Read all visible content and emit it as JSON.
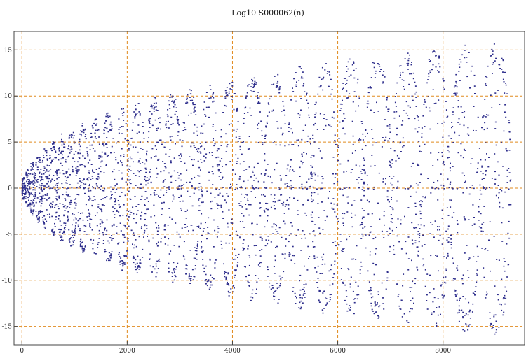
{
  "chart_data": {
    "type": "scatter",
    "title": "Log10 S000062(n)",
    "xlabel": "",
    "ylabel": "",
    "xlim": [
      -150,
      9550
    ],
    "ylim": [
      -17,
      17
    ],
    "x_ticks": [
      0,
      2000,
      4000,
      6000,
      8000
    ],
    "x_tick_labels": [
      "0",
      "2000",
      "4000",
      "6000",
      "8000"
    ],
    "y_ticks": [
      -15,
      -10,
      -5,
      0,
      5,
      10,
      15
    ],
    "y_tick_labels": [
      "-15",
      "-10",
      "-5",
      "0",
      "5",
      "10",
      "15"
    ],
    "grid": true,
    "grid_color": "#e08a1e",
    "point_color": "#2e2e8c",
    "series": [
      {
        "lobes": [
          {
            "x": 30,
            "amp": 1.2
          },
          {
            "x": 105,
            "amp": 2.1
          },
          {
            "x": 195,
            "amp": 3.0
          },
          {
            "x": 310,
            "amp": 3.8
          },
          {
            "x": 440,
            "amp": 4.5
          },
          {
            "x": 590,
            "amp": 5.2
          },
          {
            "x": 760,
            "amp": 5.9
          },
          {
            "x": 950,
            "amp": 6.5
          },
          {
            "x": 1160,
            "amp": 7.1
          },
          {
            "x": 1390,
            "amp": 7.7
          },
          {
            "x": 1640,
            "amp": 8.3
          },
          {
            "x": 1910,
            "amp": 8.9
          },
          {
            "x": 2200,
            "amp": 9.4
          },
          {
            "x": 2520,
            "amp": 9.9
          },
          {
            "x": 2860,
            "amp": 10.4
          },
          {
            "x": 3200,
            "amp": 10.8
          },
          {
            "x": 3560,
            "amp": 11.3
          },
          {
            "x": 3960,
            "amp": 11.8
          },
          {
            "x": 4380,
            "amp": 12.3
          },
          {
            "x": 4820,
            "amp": 12.8
          },
          {
            "x": 5270,
            "amp": 13.3
          },
          {
            "x": 5750,
            "amp": 13.8
          },
          {
            "x": 6250,
            "amp": 14.2
          },
          {
            "x": 6760,
            "amp": 14.6
          },
          {
            "x": 7300,
            "amp": 15.0
          },
          {
            "x": 7850,
            "amp": 15.3
          },
          {
            "x": 8420,
            "amp": 15.7
          },
          {
            "x": 9000,
            "amp": 16.0
          }
        ]
      }
    ]
  }
}
